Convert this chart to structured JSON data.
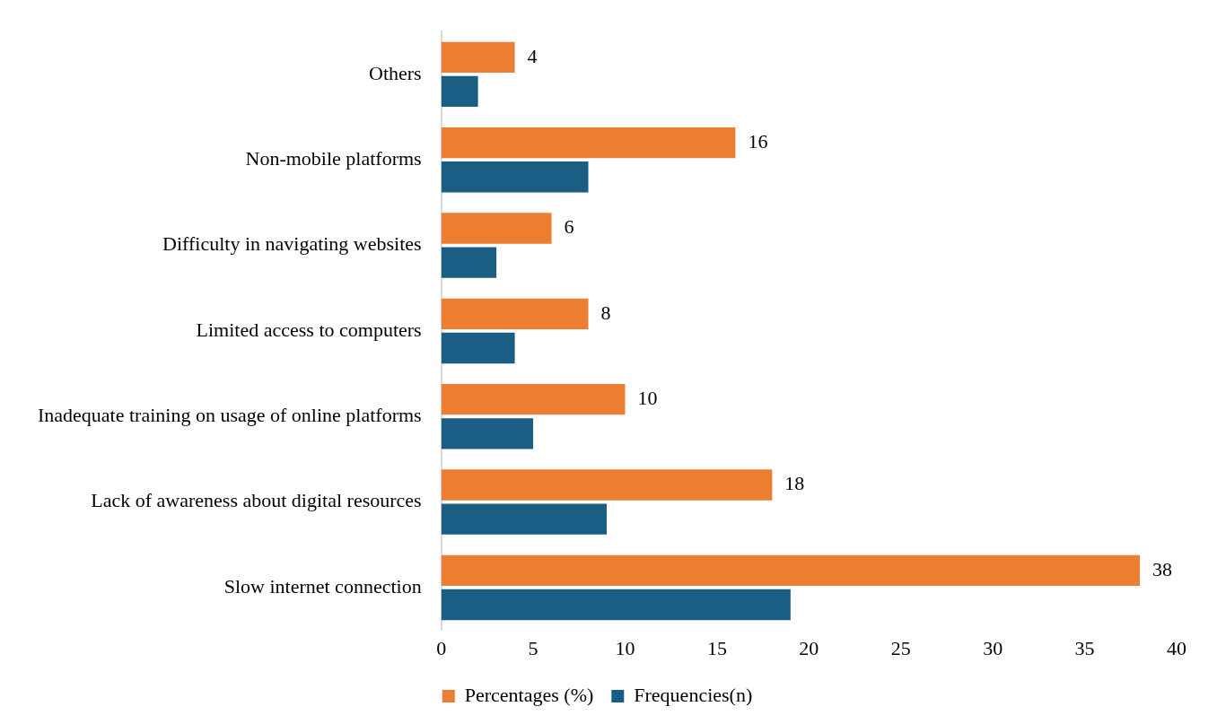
{
  "chart_data": {
    "type": "bar",
    "orientation": "horizontal",
    "categories": [
      "Others",
      "Non-mobile platforms",
      "Difficulty in navigating websites",
      "Limited access to computers",
      "Inadequate training on usage of online platforms",
      "Lack of awareness about digital resources",
      "Slow internet connection"
    ],
    "series": [
      {
        "name": "Percentages (%)",
        "color": "#ed7d31",
        "values": [
          4,
          16,
          6,
          8,
          10,
          18,
          38
        ],
        "value_labels": [
          "4",
          "16",
          "6",
          "8",
          "10",
          "18",
          "38"
        ]
      },
      {
        "name": "Frequencies(n)",
        "color": "#1b5e83",
        "values": [
          2,
          8,
          3,
          4,
          5,
          9,
          19
        ]
      }
    ],
    "xlim": [
      0,
      40
    ],
    "xticks": [
      0,
      5,
      10,
      15,
      20,
      25,
      30,
      35,
      40
    ],
    "grid": false,
    "legend": "bottom"
  }
}
